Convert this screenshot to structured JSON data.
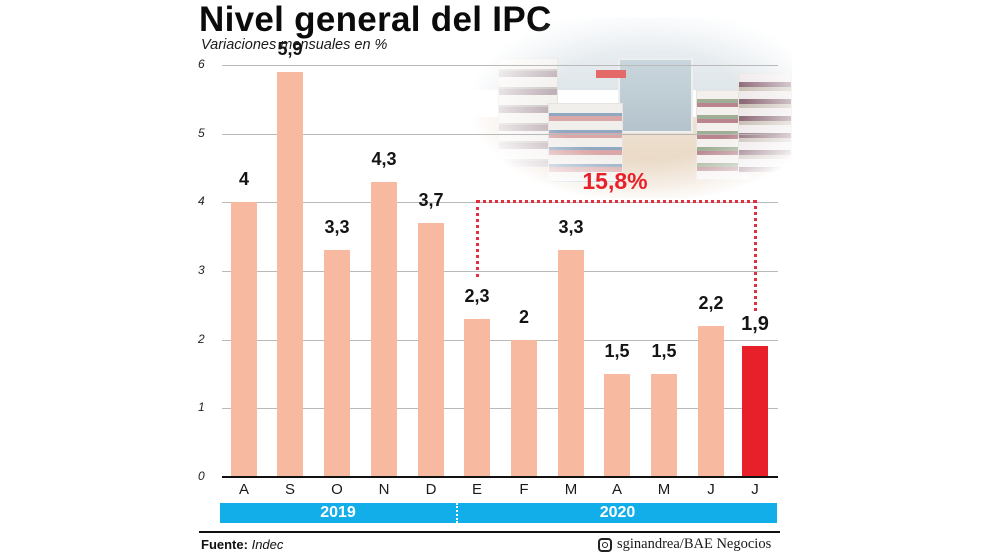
{
  "header": {
    "title": "Nivel general del IPC",
    "subtitle": "Variaciones mensuales en %"
  },
  "colors": {
    "bar": "#f7b9a0",
    "highlight_bar": "#e8202a",
    "year_band": "#12aee9",
    "annotation": "#e8202a"
  },
  "annotation": {
    "total_label": "15,8%",
    "spans_from": "E",
    "spans_to": "J"
  },
  "years": [
    {
      "label": "2019"
    },
    {
      "label": "2020"
    }
  ],
  "footer": {
    "source_label": "Fuente:",
    "source_value": "Indec",
    "credit": "sginandrea/BAE Negocios",
    "credit_icon": "instagram-icon"
  },
  "chart_data": {
    "type": "bar",
    "title": "Nivel general del IPC",
    "subtitle": "Variaciones mensuales en %",
    "xlabel": "",
    "ylabel": "",
    "ylim": [
      0,
      6
    ],
    "yticks": [
      "0",
      "1",
      "2",
      "3",
      "4",
      "5",
      "6"
    ],
    "grid": true,
    "categories": [
      "A",
      "S",
      "O",
      "N",
      "D",
      "E",
      "F",
      "M",
      "A",
      "M",
      "J",
      "J"
    ],
    "value_labels": [
      "4",
      "5,9",
      "3,3",
      "4,3",
      "3,7",
      "2,3",
      "2",
      "3,3",
      "1,5",
      "1,5",
      "2,2",
      "1,9"
    ],
    "values": [
      4.0,
      5.9,
      3.3,
      4.3,
      3.7,
      2.3,
      2.0,
      3.3,
      1.5,
      1.5,
      2.2,
      1.9
    ],
    "groups": [
      {
        "label": "2019",
        "categories": [
          "A",
          "S",
          "O",
          "N",
          "D"
        ]
      },
      {
        "label": "2020",
        "categories": [
          "E",
          "F",
          "M",
          "A",
          "M",
          "J",
          "J"
        ]
      }
    ],
    "highlighted_index": 11,
    "annotations": [
      {
        "text": "15,8%",
        "type": "bracket",
        "from_index": 5,
        "to_index": 11
      }
    ],
    "source": "Fuente: Indec"
  }
}
